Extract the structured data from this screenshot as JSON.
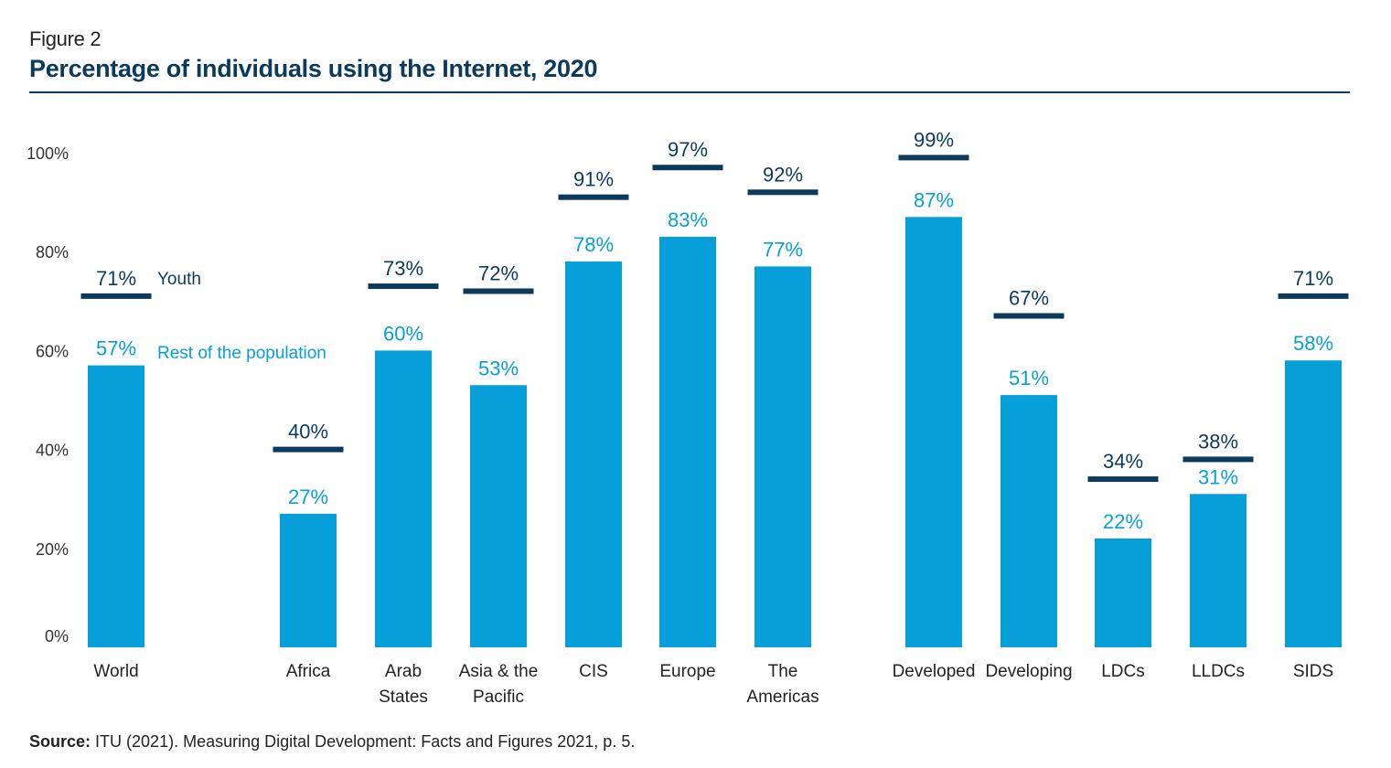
{
  "figure_label": "Figure 2",
  "title": "Percentage of individuals using the Internet, 2020",
  "source": {
    "label": "Source:",
    "text": "ITU (2021). Measuring Digital Development: Facts and Figures 2021, p. 5."
  },
  "colors": {
    "rest_of_population": "#079fd9",
    "youth": "#0b3a5c",
    "axis_text": "#333333",
    "title": "#0b3a5c"
  },
  "chart_data": {
    "type": "bar",
    "title": "Percentage of individuals using the Internet, 2020",
    "xlabel": "",
    "ylabel": "",
    "ylim": [
      0,
      100
    ],
    "y_ticks": [
      0,
      20,
      40,
      60,
      80,
      100
    ],
    "y_tick_labels": [
      "0%",
      "20%",
      "40%",
      "60%",
      "80%",
      "100%"
    ],
    "grid": false,
    "categories": [
      "World",
      "Africa",
      "Arab States",
      "Asia & the Pacific",
      "CIS",
      "Europe",
      "The Americas",
      "Developed",
      "Developing",
      "LDCs",
      "LLDCs",
      "SIDS"
    ],
    "category_labels": [
      [
        "World"
      ],
      [
        "Africa"
      ],
      [
        "Arab",
        "States"
      ],
      [
        "Asia & the",
        "Pacific"
      ],
      [
        "CIS"
      ],
      [
        "Europe"
      ],
      [
        "The",
        "Americas"
      ],
      [
        "Developed"
      ],
      [
        "Developing"
      ],
      [
        "LDCs"
      ],
      [
        "LLDCs"
      ],
      [
        "SIDS"
      ]
    ],
    "series": [
      {
        "name": "Rest of the population",
        "style": "bar",
        "values": [
          57,
          27,
          60,
          53,
          78,
          83,
          77,
          87,
          51,
          22,
          31,
          58
        ]
      },
      {
        "name": "Youth",
        "style": "marker-line",
        "values": [
          71,
          40,
          73,
          72,
          91,
          97,
          92,
          99,
          67,
          34,
          38,
          71
        ]
      }
    ],
    "value_labels_suffix": "%",
    "legend": {
      "placement": "inline-next-to-first-bar",
      "entries": [
        "Youth",
        "Rest of the population"
      ]
    }
  }
}
